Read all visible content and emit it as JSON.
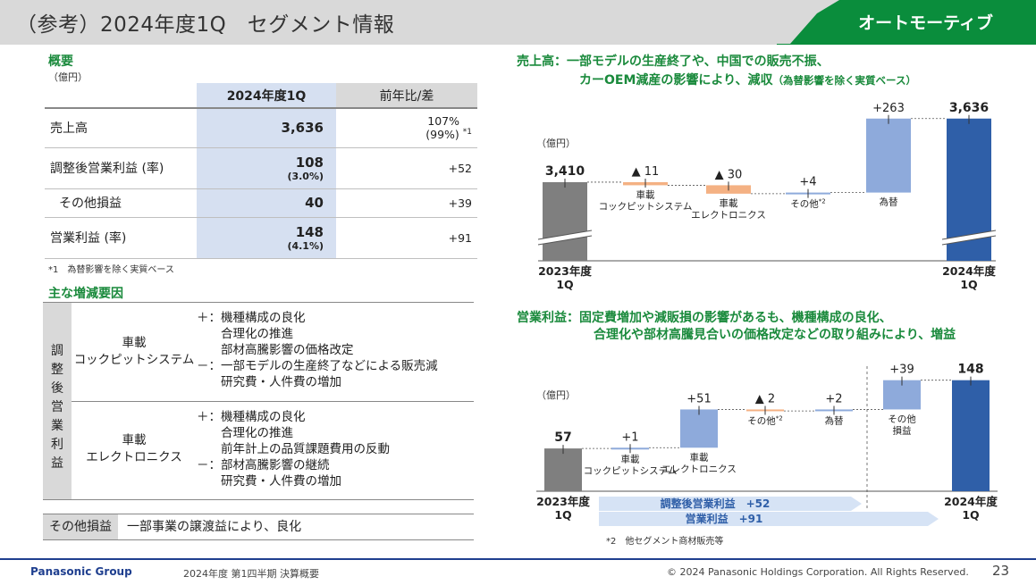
{
  "header": {
    "title": "（参考）2024年度1Q　セグメント情報",
    "segment": "オートモーティブ"
  },
  "summary": {
    "heading": "概要",
    "unit": "（億円）",
    "col_current": "2024年度1Q",
    "col_prev": "前年比/差",
    "rows": [
      {
        "label": "売上高",
        "value": "3,636",
        "rate": "",
        "diff": "107%",
        "diff2": "(99%)",
        "note": "*1"
      },
      {
        "label": "調整後営業利益 (率)",
        "value": "108",
        "rate": "(3.0%)",
        "diff": "+52",
        "diff2": "",
        "note": ""
      },
      {
        "label": "その他損益",
        "value": "40",
        "rate": "",
        "diff": "+39",
        "diff2": "",
        "note": ""
      },
      {
        "label": "営業利益 (率)",
        "value": "148",
        "rate": "(4.1%)",
        "diff": "+91",
        "diff2": "",
        "note": ""
      }
    ],
    "footnote": "*1　為替影響を除く実質ベース"
  },
  "factors": {
    "heading": "主な増減要因",
    "side_label": "調整後営業利益",
    "blocks": [
      {
        "name": [
          "車載",
          "コックピットシステム"
        ],
        "lines": [
          "＋：機種構成の良化",
          "　　合理化の推進",
          "　　部材高騰影響の価格改定",
          "－：一部モデルの生産終了などによる販売減",
          "　　研究費・人件費の増加"
        ]
      },
      {
        "name": [
          "車載",
          "エレクトロニクス"
        ],
        "lines": [
          "＋：機種構成の良化",
          "　　合理化の推進",
          "　　前年計上の品質課題費用の反動",
          "－：部材高騰影響の継続",
          "　　研究費・人件費の増加"
        ]
      }
    ],
    "other_label": "その他損益",
    "other_text": "一部事業の譲渡益により、良化"
  },
  "chart_sales": {
    "heading1": "売上高：一部モデルの生産終了や、中国での販売不振、",
    "heading2": "カーOEM減産の影響により、減収",
    "heading2_note": "（為替影響を除く実質ベース）",
    "unit": "（億円）",
    "start_label": [
      "2023年度",
      "1Q"
    ],
    "end_label": [
      "2024年度",
      "1Q"
    ]
  },
  "chart_profit": {
    "heading1": "営業利益：固定費増加や減販損の影響があるも、機種構成の良化、",
    "heading2": "合理化や部材高騰見合いの価格改定などの取り組みにより、増益",
    "unit": "（億円）",
    "start_label": [
      "2023年度",
      "1Q"
    ],
    "end_label": [
      "2024年度",
      "1Q"
    ],
    "arrow1": "調整後営業利益　+52",
    "arrow2": "営業利益　+91",
    "footnote": "*2　他セグメント商材販売等"
  },
  "chart_data": [
    {
      "type": "waterfall",
      "title": "売上高",
      "unit": "億円",
      "categories": [
        "2023年度1Q",
        "車載コックピットシステム",
        "車載エレクトロニクス",
        "その他*2",
        "為替",
        "2024年度1Q"
      ],
      "values": [
        3410,
        -11,
        -30,
        4,
        263,
        3636
      ],
      "labels": [
        "3,410",
        "▲ 11",
        "▲ 30",
        "+4",
        "+263",
        "3,636"
      ],
      "axis_break": true,
      "colors": {
        "total_prev": "#7f7f7f",
        "total_curr": "#2f5fa8",
        "negative": "#f4b183",
        "positive": "#8eaadb"
      }
    },
    {
      "type": "waterfall",
      "title": "営業利益",
      "unit": "億円",
      "categories": [
        "2023年度1Q",
        "車載コックピットシステム",
        "車載エレクトロニクス",
        "その他*2",
        "為替",
        "その他損益",
        "2024年度1Q"
      ],
      "values": [
        57,
        1,
        51,
        -2,
        2,
        39,
        148
      ],
      "labels": [
        "57",
        "+1",
        "+51",
        "▲ 2",
        "+2",
        "+39",
        "148"
      ],
      "colors": {
        "total_prev": "#7f7f7f",
        "total_curr": "#2f5fa8",
        "negative": "#f4b183",
        "positive": "#8eaadb"
      }
    }
  ],
  "footer": {
    "brand": "Panasonic Group",
    "doc": "2024年度 第1四半期  決算概要",
    "copyright": "© 2024 Panasonic Holdings Corporation. All Rights Reserved.",
    "page": "23"
  }
}
